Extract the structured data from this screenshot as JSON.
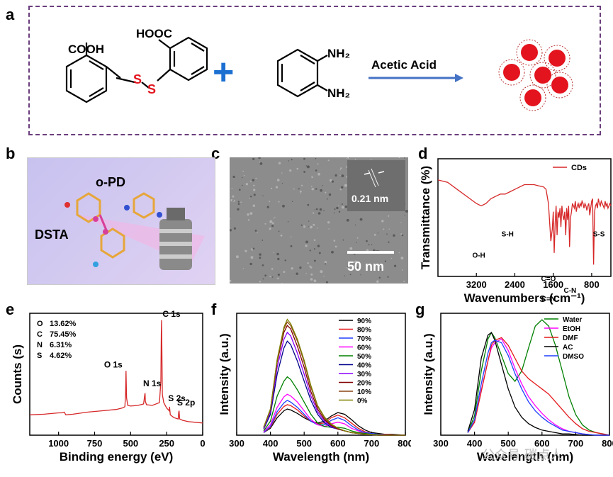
{
  "panels": {
    "a": "a",
    "b": "b",
    "c": "c",
    "d": "d",
    "e": "e",
    "f": "f",
    "g": "g"
  },
  "scheme_a": {
    "cooh": "COOH",
    "hooc": "HOOC",
    "s1": "S",
    "s2": "S",
    "plus": "+",
    "nh2_top": "NH₂",
    "nh2_bottom": "NH₂",
    "arrow_label": "Acetic Acid"
  },
  "panel_b": {
    "label_opd": "o-PD",
    "label_dsta": "DSTA"
  },
  "panel_c": {
    "lattice": "0.21 nm",
    "scalebar": "50 nm"
  },
  "watermark": "公众号·碳点人",
  "colors": {
    "red": "#d62728",
    "dashed_border": "#6a3d7c",
    "arrow_blue": "#4472c4"
  },
  "chart_data": [
    {
      "id": "d",
      "type": "line",
      "xlabel": "Wavenumbers (cm⁻¹)",
      "ylabel": "Transmittance (%)",
      "xlim": [
        4000,
        400
      ],
      "x_ticks": [
        3200,
        2400,
        1600,
        800
      ],
      "legend": "CDs",
      "legend_position": "top-right",
      "annotations": [
        {
          "text": "O-H",
          "x": 3150
        },
        {
          "text": "S-H",
          "x": 2550
        },
        {
          "text": "C=O",
          "x": 1700
        },
        {
          "text": "C=N",
          "x": 1700
        },
        {
          "text": "C-N",
          "x": 1250
        },
        {
          "text": "S-S",
          "x": 650
        }
      ],
      "series": [
        {
          "name": "CDs",
          "color": "#d62728",
          "x": [
            4000,
            3800,
            3600,
            3400,
            3200,
            3100,
            3000,
            2900,
            2800,
            2700,
            2600,
            2500,
            2400,
            2300,
            2200,
            2100,
            2000,
            1900,
            1800,
            1750,
            1700,
            1650,
            1620,
            1600,
            1580,
            1560,
            1540,
            1520,
            1500,
            1480,
            1460,
            1440,
            1420,
            1400,
            1380,
            1360,
            1340,
            1320,
            1300,
            1280,
            1260,
            1240,
            1220,
            1200,
            1180,
            1160,
            1140,
            1120,
            1100,
            1080,
            1060,
            1040,
            1020,
            1000,
            980,
            960,
            940,
            920,
            900,
            880,
            860,
            840,
            820,
            800,
            780,
            760,
            740,
            720,
            700,
            680,
            660,
            640,
            620,
            600,
            580,
            560,
            540,
            520,
            500,
            480,
            460,
            440,
            420,
            400
          ],
          "y": [
            82,
            80,
            74,
            68,
            62,
            60,
            62,
            66,
            68,
            70,
            70,
            72,
            74,
            76,
            78,
            78,
            78,
            77,
            76,
            74,
            62,
            30,
            40,
            55,
            20,
            45,
            60,
            35,
            55,
            50,
            58,
            42,
            60,
            52,
            48,
            55,
            35,
            58,
            48,
            60,
            25,
            50,
            55,
            62,
            60,
            58,
            64,
            55,
            60,
            62,
            58,
            62,
            60,
            64,
            62,
            58,
            62,
            60,
            56,
            60,
            62,
            52,
            58,
            64,
            66,
            10,
            55,
            60,
            62,
            58,
            66,
            62,
            60,
            64,
            62,
            60,
            58,
            64,
            60,
            62,
            58,
            60,
            62,
            60
          ]
        }
      ]
    },
    {
      "id": "e",
      "type": "line",
      "xlabel": "Binding energy (eV)",
      "ylabel": "Counts (s)",
      "xlim": [
        1200,
        0
      ],
      "x_ticks": [
        1000,
        750,
        500,
        250,
        0
      ],
      "composition": [
        {
          "element": "O",
          "percent": "13.62%"
        },
        {
          "element": "C",
          "percent": "75.45%"
        },
        {
          "element": "N",
          "percent": "6.31%"
        },
        {
          "element": "S",
          "percent": "4.62%"
        }
      ],
      "annotations": [
        {
          "text": "O 1s",
          "x": 532
        },
        {
          "text": "N 1s",
          "x": 400
        },
        {
          "text": "C 1s",
          "x": 285
        },
        {
          "text": "S 2s",
          "x": 228
        },
        {
          "text": "S 2p",
          "x": 164
        }
      ],
      "series": [
        {
          "name": "",
          "color": "#d62728",
          "x": [
            1200,
            1100,
            1000,
            980,
            960,
            950,
            900,
            800,
            700,
            600,
            560,
            540,
            535,
            532,
            528,
            520,
            500,
            450,
            410,
            402,
            400,
            398,
            390,
            350,
            300,
            290,
            287,
            285,
            283,
            280,
            270,
            250,
            232,
            230,
            228,
            225,
            200,
            170,
            166,
            164,
            162,
            160,
            140,
            100,
            50,
            0
          ],
          "y": [
            30,
            31,
            33,
            33,
            34,
            30,
            31,
            34,
            36,
            38,
            40,
            42,
            60,
            95,
            55,
            44,
            43,
            44,
            46,
            60,
            62,
            50,
            45,
            44,
            48,
            80,
            150,
            170,
            120,
            60,
            48,
            40,
            36,
            42,
            38,
            30,
            26,
            24,
            34,
            36,
            30,
            24,
            22,
            20,
            19,
            18
          ]
        }
      ]
    },
    {
      "id": "f",
      "type": "line",
      "xlabel": "Wavelength (nm)",
      "ylabel": "Intensity (a.u.)",
      "xlim": [
        300,
        800
      ],
      "x_ticks": [
        300,
        400,
        500,
        600,
        700,
        800
      ],
      "legend_position": "top-right",
      "x": [
        380,
        400,
        420,
        440,
        450,
        460,
        480,
        500,
        520,
        540,
        560,
        580,
        600,
        620,
        640,
        660,
        680,
        700,
        720,
        740,
        760,
        780,
        800
      ],
      "series": [
        {
          "name": "90%",
          "color": "#000000",
          "values": [
            3,
            8,
            20,
            28,
            30,
            29,
            25,
            20,
            16,
            14,
            16,
            22,
            26,
            24,
            18,
            11,
            6,
            3,
            2,
            1,
            1,
            0.5,
            0
          ]
        },
        {
          "name": "80%",
          "color": "#e41a1c",
          "values": [
            3,
            9,
            24,
            33,
            35,
            34,
            29,
            22,
            16,
            13,
            14,
            20,
            23,
            20,
            14,
            8,
            4,
            2,
            1,
            1,
            0.5,
            0,
            0
          ]
        },
        {
          "name": "70%",
          "color": "#1f3fff",
          "values": [
            3,
            10,
            27,
            37,
            40,
            38,
            32,
            24,
            16,
            12,
            12,
            17,
            20,
            17,
            11,
            6,
            3,
            2,
            1,
            0.5,
            0,
            0,
            0
          ]
        },
        {
          "name": "60%",
          "color": "#ff00ff",
          "values": [
            4,
            12,
            32,
            44,
            47,
            45,
            38,
            28,
            18,
            12,
            10,
            13,
            15,
            13,
            8,
            5,
            2,
            1,
            0.5,
            0,
            0,
            0,
            0
          ]
        },
        {
          "name": "50%",
          "color": "#008000",
          "values": [
            5,
            16,
            45,
            62,
            67,
            64,
            52,
            38,
            24,
            14,
            10,
            9,
            9,
            8,
            5,
            3,
            2,
            1,
            0.5,
            0,
            0,
            0,
            0
          ]
        },
        {
          "name": "40%",
          "color": "#00008b",
          "values": [
            7,
            24,
            70,
            100,
            108,
            104,
            85,
            62,
            40,
            24,
            14,
            9,
            7,
            5,
            3,
            2,
            1,
            0.5,
            0,
            0,
            0,
            0,
            0
          ]
        },
        {
          "name": "30%",
          "color": "#8b00ff",
          "values": [
            8,
            27,
            78,
            110,
            118,
            114,
            94,
            70,
            45,
            27,
            16,
            10,
            7,
            5,
            3,
            2,
            1,
            0.5,
            0,
            0,
            0,
            0,
            0
          ]
        },
        {
          "name": "20%",
          "color": "#800000",
          "values": [
            9,
            29,
            84,
            118,
            126,
            122,
            102,
            78,
            50,
            30,
            18,
            11,
            7,
            5,
            3,
            2,
            1,
            0.5,
            0,
            0,
            0,
            0,
            0
          ]
        },
        {
          "name": "10%",
          "color": "#8b4513",
          "values": [
            9,
            30,
            86,
            122,
            130,
            126,
            108,
            84,
            55,
            33,
            20,
            12,
            8,
            5,
            3,
            2,
            1,
            0.5,
            0,
            0,
            0,
            0,
            0
          ]
        },
        {
          "name": "0%",
          "color": "#808000",
          "values": [
            9,
            30,
            87,
            124,
            133,
            128,
            110,
            86,
            57,
            34,
            21,
            13,
            8,
            5,
            3,
            2,
            1,
            0.5,
            0,
            0,
            0,
            0,
            0
          ]
        }
      ]
    },
    {
      "id": "g",
      "type": "line",
      "xlabel": "Wavelength (nm)",
      "ylabel": "Intensity (a.u.)",
      "xlim": [
        300,
        800
      ],
      "x_ticks": [
        300,
        400,
        500,
        600,
        700,
        800
      ],
      "legend_position": "top-right",
      "x": [
        380,
        400,
        420,
        440,
        450,
        460,
        480,
        500,
        520,
        540,
        560,
        580,
        600,
        620,
        640,
        660,
        680,
        700,
        720,
        740,
        760,
        780,
        800
      ],
      "series": [
        {
          "name": "Water",
          "color": "#008000",
          "values": [
            2,
            15,
            50,
            75,
            80,
            76,
            62,
            48,
            42,
            50,
            68,
            85,
            90,
            85,
            70,
            50,
            30,
            16,
            8,
            4,
            2,
            1,
            0
          ]
        },
        {
          "name": "EtOH",
          "color": "#ff00ff",
          "values": [
            2,
            10,
            35,
            58,
            68,
            72,
            75,
            66,
            52,
            40,
            30,
            23,
            17,
            12,
            8,
            5,
            3,
            2,
            1,
            0.5,
            0,
            0,
            0
          ]
        },
        {
          "name": "DMF",
          "color": "#e41a1c",
          "values": [
            2,
            10,
            34,
            58,
            70,
            74,
            76,
            70,
            60,
            50,
            44,
            40,
            36,
            32,
            26,
            20,
            14,
            9,
            5,
            3,
            2,
            1,
            0
          ]
        },
        {
          "name": "AC",
          "color": "#000000",
          "values": [
            3,
            20,
            60,
            78,
            80,
            74,
            55,
            36,
            22,
            14,
            9,
            6,
            4,
            3,
            2,
            1,
            1,
            0.5,
            0,
            0,
            0,
            0,
            0
          ]
        },
        {
          "name": "DMSO",
          "color": "#1f3fff",
          "values": [
            2,
            12,
            40,
            64,
            72,
            74,
            72,
            62,
            48,
            36,
            26,
            19,
            14,
            10,
            7,
            4,
            3,
            2,
            1,
            0.5,
            0,
            0,
            0
          ]
        }
      ]
    }
  ]
}
